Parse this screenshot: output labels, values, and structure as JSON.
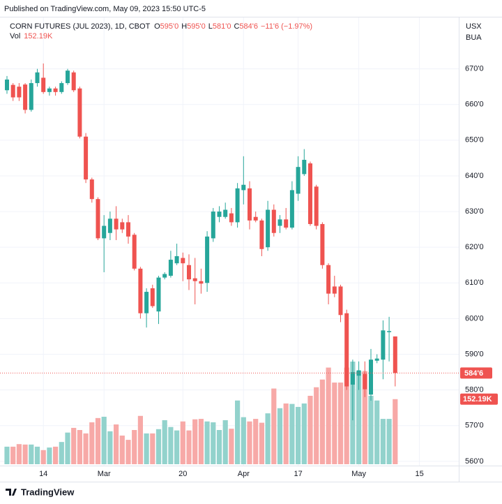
{
  "header": {
    "published": "Published on TradingView.com, May 09, 2023 15:50 UTC-5"
  },
  "footer": {
    "brand": "TradingView"
  },
  "chart_data": {
    "type": "candlestick",
    "legend": {
      "symbol": "CORN FUTURES (JUL 2023), 1D, CBOT",
      "ohlc": [
        {
          "key": "O",
          "value": "595'0"
        },
        {
          "key": "H",
          "value": "595'0"
        },
        {
          "key": "L",
          "value": "581'0"
        },
        {
          "key": "C",
          "value": "584'6"
        }
      ],
      "change": "−11'6 (−1.97%)",
      "volume_key": "Vol",
      "volume": "152.19K"
    },
    "currency": "USX",
    "unit_label": "BUA",
    "categories": [
      null,
      null,
      null,
      null,
      null,
      null,
      "14",
      null,
      null,
      null,
      null,
      null,
      null,
      null,
      null,
      null,
      "Mar",
      null,
      null,
      null,
      null,
      null,
      null,
      null,
      null,
      null,
      null,
      null,
      null,
      "20",
      null,
      null,
      null,
      null,
      null,
      null,
      null,
      null,
      null,
      "Apr",
      null,
      null,
      null,
      null,
      null,
      null,
      null,
      null,
      "17",
      null,
      null,
      null,
      null,
      null,
      null,
      null,
      null,
      null,
      "May",
      null,
      null,
      null,
      null,
      null,
      null,
      null,
      null,
      null,
      "15"
    ],
    "open": [
      664,
      665.5,
      665,
      665.6,
      658.5,
      666,
      667.5,
      663.5,
      664.5,
      663.5,
      666,
      669,
      664.5,
      651,
      639,
      633.5,
      622.5,
      624,
      628,
      627,
      627,
      623.5,
      614,
      601.5,
      608.5,
      602,
      611.5,
      612,
      615.5,
      617,
      615,
      611.3,
      610.5,
      610,
      622.5,
      628.5,
      628.5,
      629.5,
      627,
      636,
      636.5,
      628.5,
      627.5,
      620,
      630.5,
      626,
      627.8,
      625.5,
      635,
      640.5,
      643.5,
      637,
      626.5,
      615,
      609,
      609,
      601.5,
      581.5,
      584,
      584.5,
      578.7,
      588.2,
      588.5,
      596.2,
      595,
      null,
      null,
      null,
      null
    ],
    "high": [
      668,
      666,
      666,
      666,
      667,
      670,
      671.5,
      665,
      665,
      666.5,
      670,
      669.5,
      665,
      652,
      639.5,
      634,
      629,
      630,
      631.5,
      628,
      629,
      624,
      614.5,
      608.5,
      609.5,
      612,
      613,
      619,
      621,
      618.5,
      618,
      617,
      614,
      624.5,
      631,
      631.5,
      632.5,
      631,
      638,
      645.5,
      638.5,
      630,
      628,
      633,
      632,
      629,
      631,
      638.5,
      645.5,
      647.5,
      644,
      637.5,
      627,
      615.5,
      612,
      609.5,
      602.5,
      588.5,
      588,
      588,
      591.5,
      590,
      599.5,
      600.5,
      595,
      null,
      null,
      null,
      null
    ],
    "low": [
      663,
      661,
      661,
      657.5,
      658,
      665,
      663,
      662.5,
      662.5,
      663,
      665.5,
      663.5,
      650.5,
      638,
      632.5,
      622,
      613,
      622,
      622,
      624,
      621,
      613.5,
      600,
      597.5,
      603,
      598.5,
      611,
      611.5,
      615,
      610.5,
      608,
      604,
      607,
      607.5,
      621.5,
      627,
      628,
      626,
      625.5,
      632,
      625,
      627,
      617.5,
      619,
      623,
      624,
      625,
      625,
      633,
      640,
      626,
      625,
      614,
      604,
      606,
      599,
      580,
      571.5,
      580,
      578,
      577,
      587.5,
      583,
      588,
      581,
      null,
      null,
      null,
      null
    ],
    "close": [
      667,
      662,
      662,
      658.5,
      666,
      669,
      663.5,
      664.5,
      663.5,
      666,
      669.5,
      664,
      651,
      639,
      633.5,
      622.5,
      626,
      628,
      625,
      625,
      623,
      614,
      601.5,
      607.5,
      603.5,
      611.5,
      612.5,
      616.5,
      617.5,
      615.5,
      611,
      610.5,
      609.8,
      623,
      630,
      630,
      630.5,
      627,
      636.5,
      637.5,
      627.5,
      627.5,
      619.5,
      630.5,
      624,
      627.8,
      625.5,
      636,
      642.5,
      644.5,
      626.5,
      626,
      615,
      607,
      607,
      601,
      581,
      585,
      585.5,
      580.2,
      588.5,
      588.8,
      596.7,
      596.5,
      584.75,
      null,
      null,
      null,
      null
    ],
    "volume": [
      41000,
      41000,
      47000,
      46000,
      46000,
      41000,
      33000,
      39000,
      41000,
      52000,
      74000,
      85000,
      80000,
      72000,
      98000,
      108000,
      111000,
      77000,
      93000,
      67000,
      57000,
      80000,
      113000,
      72000,
      72000,
      82000,
      103000,
      87000,
      79000,
      100000,
      79000,
      105000,
      106000,
      100000,
      98000,
      80000,
      103000,
      83000,
      149000,
      110000,
      100000,
      106000,
      97000,
      119000,
      177000,
      131000,
      142000,
      141000,
      134000,
      142000,
      160000,
      180000,
      198000,
      226000,
      191000,
      191000,
      226000,
      240000,
      218000,
      218000,
      160000,
      149000,
      106000,
      106000,
      152190,
      null,
      null,
      null,
      null
    ],
    "ylim": [
      558.8,
      684.4
    ],
    "yticks": [
      {
        "value": 560,
        "label": "560'0"
      },
      {
        "value": 570,
        "label": "570'0"
      },
      {
        "value": 580,
        "label": "580'0"
      },
      {
        "value": 590,
        "label": "590'0"
      },
      {
        "value": 600,
        "label": "600'0"
      },
      {
        "value": 610,
        "label": "610'0"
      },
      {
        "value": 620,
        "label": "620'0"
      },
      {
        "value": 630,
        "label": "630'0"
      },
      {
        "value": 640,
        "label": "640'0"
      },
      {
        "value": 650,
        "label": "650'0"
      },
      {
        "value": 660,
        "label": "660'0"
      },
      {
        "value": 670,
        "label": "670'0"
      }
    ],
    "grid": true,
    "up_color": "#26a69a",
    "down_color": "#ef5350",
    "volume_up_color": "#92d2cc",
    "volume_down_color": "#f7a9a7"
  }
}
